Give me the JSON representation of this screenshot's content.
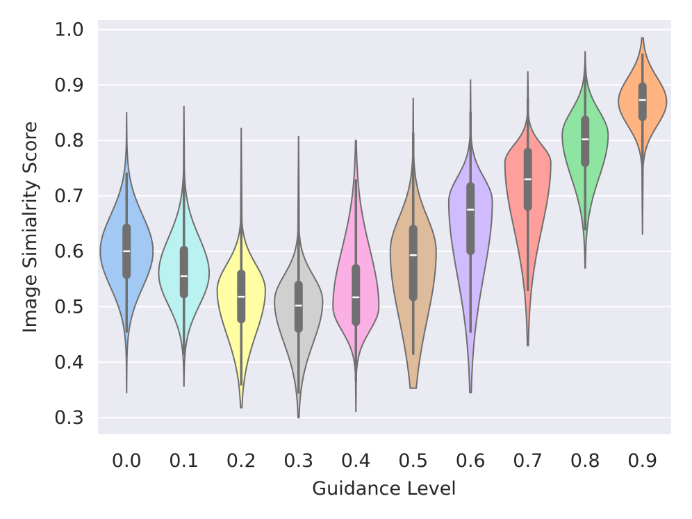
{
  "chart_data": {
    "type": "violin",
    "title": "",
    "xlabel": "Guidance Level",
    "ylabel": "Image Simialrity Score",
    "ylim": [
      0.27,
      1.017
    ],
    "yticks": [
      "0.3",
      "0.4",
      "0.5",
      "0.6",
      "0.7",
      "0.8",
      "0.9",
      "1.0"
    ],
    "ytick_values": [
      0.3,
      0.4,
      0.5,
      0.6,
      0.7,
      0.8,
      0.9,
      1.0
    ],
    "categories": [
      "0.0",
      "0.1",
      "0.2",
      "0.3",
      "0.4",
      "0.5",
      "0.6",
      "0.7",
      "0.8",
      "0.9"
    ],
    "grid": true,
    "background_color": "#eaeaf2",
    "violins": [
      {
        "category": "0.0",
        "color": "#a1c9f4",
        "min": 0.345,
        "max": 0.85,
        "q1": 0.555,
        "median": 0.6,
        "q3": 0.645,
        "wlow": 0.455,
        "whigh": 0.74,
        "mode": 0.6,
        "width": 0.46
      },
      {
        "category": "0.1",
        "color": "#b9f2f0",
        "min": 0.357,
        "max": 0.862,
        "q1": 0.52,
        "median": 0.555,
        "q3": 0.605,
        "wlow": 0.415,
        "whigh": 0.73,
        "mode": 0.56,
        "width": 0.44
      },
      {
        "category": "0.2",
        "color": "#fffea3",
        "min": 0.318,
        "max": 0.823,
        "q1": 0.475,
        "median": 0.518,
        "q3": 0.562,
        "wlow": 0.36,
        "whigh": 0.69,
        "mode": 0.53,
        "width": 0.42
      },
      {
        "category": "0.3",
        "color": "#d0d0d0",
        "min": 0.3,
        "max": 0.808,
        "q1": 0.458,
        "median": 0.502,
        "q3": 0.542,
        "wlow": 0.345,
        "whigh": 0.665,
        "mode": 0.51,
        "width": 0.42
      },
      {
        "category": "0.4",
        "color": "#fab0e4",
        "min": 0.31,
        "max": 0.8,
        "q1": 0.47,
        "median": 0.517,
        "q3": 0.572,
        "wlow": 0.367,
        "whigh": 0.728,
        "mode": 0.5,
        "width": 0.4
      },
      {
        "category": "0.5",
        "color": "#debb9b",
        "min": 0.353,
        "max": 0.877,
        "q1": 0.515,
        "median": 0.593,
        "q3": 0.643,
        "wlow": 0.415,
        "whigh": 0.813,
        "mode": 0.6,
        "width": 0.4
      },
      {
        "category": "0.6",
        "color": "#d0bbff",
        "min": 0.345,
        "max": 0.91,
        "q1": 0.598,
        "median": 0.675,
        "q3": 0.72,
        "wlow": 0.455,
        "whigh": 0.85,
        "mode": 0.69,
        "width": 0.38
      },
      {
        "category": "0.7",
        "color": "#ff9f9b",
        "min": 0.43,
        "max": 0.925,
        "q1": 0.678,
        "median": 0.73,
        "q3": 0.782,
        "wlow": 0.53,
        "whigh": 0.875,
        "mode": 0.76,
        "width": 0.4
      },
      {
        "category": "0.8",
        "color": "#8de5a1",
        "min": 0.57,
        "max": 0.96,
        "q1": 0.757,
        "median": 0.802,
        "q3": 0.84,
        "wlow": 0.64,
        "whigh": 0.925,
        "mode": 0.81,
        "width": 0.4
      },
      {
        "category": "0.9",
        "color": "#ffb482",
        "min": 0.63,
        "max": 0.985,
        "q1": 0.84,
        "median": 0.873,
        "q3": 0.9,
        "wlow": 0.745,
        "whigh": 0.955,
        "mode": 0.87,
        "width": 0.42
      }
    ]
  }
}
